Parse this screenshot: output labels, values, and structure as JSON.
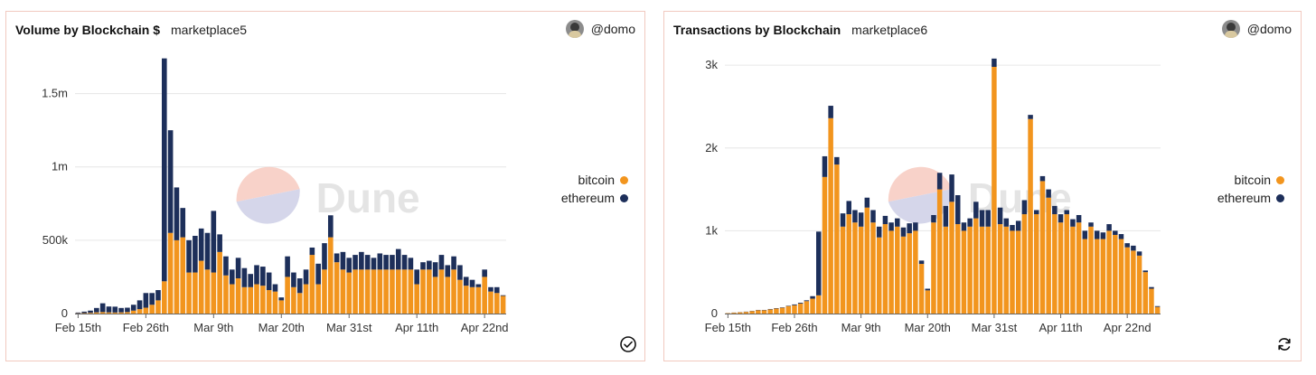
{
  "colors": {
    "bitcoin": "#f2951e",
    "ethereum": "#1d2f5a",
    "grid": "#e6e6e6",
    "axis": "#333333",
    "watermark_top": "#f6c3b8",
    "watermark_bottom": "#c7c9e3"
  },
  "watermark": "Dune",
  "panels": [
    {
      "title": "Volume by Blockchain $",
      "subtitle": "marketplace5",
      "user": "@domo",
      "status_icon": "check-circle-icon"
    },
    {
      "title": "Transactions by Blockchain",
      "subtitle": "marketplace6",
      "user": "@domo",
      "status_icon": "refresh-icon"
    }
  ],
  "chart_data": [
    {
      "type": "bar",
      "stacked": true,
      "title": "Volume by Blockchain $",
      "xlabel": "",
      "ylabel": "",
      "ylim": [
        0,
        1750000
      ],
      "yticks": [
        0,
        500000,
        1000000,
        1500000
      ],
      "ytick_labels": [
        "0",
        "500k",
        "1m",
        "1.5m"
      ],
      "xtick_labels": [
        "Feb 15th",
        "Feb 26th",
        "Mar 9th",
        "Mar 20th",
        "Mar 31st",
        "Apr 11th",
        "Apr 22nd"
      ],
      "xtick_index": [
        0,
        11,
        22,
        33,
        44,
        55,
        66
      ],
      "grid": true,
      "legend": "right",
      "series": [
        {
          "name": "bitcoin",
          "values": [
            2000,
            3000,
            5000,
            8000,
            10000,
            8000,
            7000,
            8000,
            10000,
            20000,
            30000,
            40000,
            60000,
            90000,
            220000,
            550000,
            500000,
            520000,
            280000,
            280000,
            360000,
            300000,
            280000,
            420000,
            260000,
            200000,
            240000,
            180000,
            180000,
            200000,
            190000,
            160000,
            150000,
            90000,
            250000,
            180000,
            140000,
            200000,
            400000,
            200000,
            300000,
            520000,
            350000,
            300000,
            280000,
            300000,
            300000,
            300000,
            300000,
            300000,
            300000,
            300000,
            300000,
            300000,
            300000,
            200000,
            300000,
            300000,
            250000,
            300000,
            250000,
            300000,
            230000,
            190000,
            180000,
            180000,
            250000,
            150000,
            140000,
            120000
          ]
        },
        {
          "name": "ethereum",
          "values": [
            5000,
            10000,
            15000,
            30000,
            60000,
            40000,
            40000,
            30000,
            30000,
            40000,
            60000,
            100000,
            80000,
            70000,
            1520000,
            700000,
            360000,
            200000,
            220000,
            250000,
            220000,
            250000,
            420000,
            120000,
            130000,
            100000,
            140000,
            130000,
            90000,
            130000,
            130000,
            120000,
            50000,
            20000,
            140000,
            100000,
            100000,
            100000,
            50000,
            140000,
            180000,
            150000,
            60000,
            120000,
            100000,
            100000,
            120000,
            100000,
            80000,
            110000,
            100000,
            100000,
            140000,
            100000,
            80000,
            100000,
            50000,
            60000,
            100000,
            100000,
            80000,
            90000,
            100000,
            60000,
            50000,
            20000,
            50000,
            30000,
            40000,
            5000
          ]
        }
      ]
    },
    {
      "type": "bar",
      "stacked": true,
      "title": "Transactions by Blockchain",
      "xlabel": "",
      "ylabel": "",
      "ylim": [
        0,
        3100
      ],
      "yticks": [
        0,
        1000,
        2000,
        3000
      ],
      "ytick_labels": [
        "0",
        "1k",
        "2k",
        "3k"
      ],
      "xtick_labels": [
        "Feb 15th",
        "Feb 26th",
        "Mar 9th",
        "Mar 20th",
        "Mar 31st",
        "Apr 11th",
        "Apr 22nd"
      ],
      "xtick_index": [
        0,
        11,
        22,
        33,
        44,
        55,
        66
      ],
      "grid": true,
      "legend": "right",
      "series": [
        {
          "name": "bitcoin",
          "values": [
            5,
            10,
            15,
            20,
            30,
            40,
            40,
            50,
            60,
            70,
            90,
            100,
            120,
            150,
            180,
            220,
            1650,
            2360,
            1800,
            1050,
            1200,
            1100,
            1050,
            1280,
            1100,
            920,
            1080,
            1000,
            1050,
            930,
            970,
            1000,
            600,
            280,
            1100,
            1500,
            1050,
            1350,
            1080,
            1000,
            1050,
            1150,
            1050,
            1050,
            2980,
            1080,
            1050,
            1000,
            1000,
            1200,
            2350,
            1200,
            1600,
            1400,
            1200,
            1100,
            1200,
            1050,
            1100,
            900,
            1050,
            900,
            900,
            1000,
            950,
            900,
            800,
            760,
            700,
            500,
            300,
            80
          ]
        },
        {
          "name": "ethereum",
          "values": [
            1,
            2,
            2,
            3,
            3,
            4,
            4,
            5,
            5,
            5,
            5,
            10,
            10,
            10,
            30,
            770,
            250,
            150,
            90,
            160,
            160,
            150,
            170,
            120,
            150,
            130,
            100,
            100,
            100,
            110,
            120,
            100,
            40,
            20,
            90,
            200,
            250,
            330,
            350,
            100,
            100,
            200,
            200,
            200,
            100,
            200,
            100,
            70,
            120,
            170,
            50,
            50,
            60,
            100,
            100,
            100,
            50,
            90,
            90,
            100,
            50,
            100,
            80,
            80,
            50,
            60,
            50,
            60,
            50,
            20,
            20,
            10
          ]
        }
      ]
    }
  ]
}
